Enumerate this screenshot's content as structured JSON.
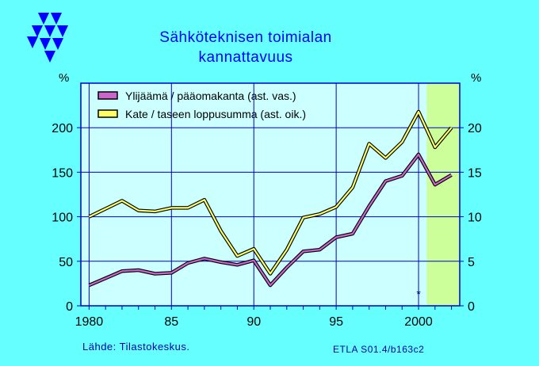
{
  "title_line1": "Sähköteknisen  toimialan",
  "title_line2": "kannattavuus",
  "unit_left": "%",
  "unit_right": "%",
  "source": "Lähde:   Tilastokeskus.",
  "code": "ETLA S01.4/b163c2",
  "star_mark": "*",
  "colors": {
    "background": "#66ffff",
    "plot_background": "#ccffff",
    "forecast_band": "#ccff99",
    "grid": "#0000cc",
    "series1": "#cc66cc",
    "series2": "#ffff66",
    "text": "#000000",
    "title": "#0000ff",
    "logo": "#0000ff"
  },
  "chart_data": {
    "type": "line",
    "x_ticks": [
      1980,
      1985,
      1990,
      1995,
      2000
    ],
    "x_tick_labels": [
      "1980",
      "85",
      "90",
      "95",
      "2000"
    ],
    "xlim": [
      1979.5,
      2002.5
    ],
    "forecast_from": 2000.5,
    "y_left": {
      "ticks": [
        0,
        50,
        100,
        150,
        200
      ],
      "labels": [
        "0",
        "50",
        "100",
        "150",
        "200"
      ],
      "lim": [
        0,
        250
      ]
    },
    "y_right": {
      "ticks": [
        0,
        5,
        10,
        15,
        20
      ],
      "labels": [
        "0",
        "5",
        "10",
        "15",
        "20"
      ],
      "lim": [
        0,
        25
      ]
    },
    "x": [
      1980,
      1981,
      1982,
      1983,
      1984,
      1985,
      1986,
      1987,
      1988,
      1989,
      1990,
      1991,
      1992,
      1993,
      1994,
      1995,
      1996,
      1997,
      1998,
      1999,
      2000,
      2001,
      2002
    ],
    "series": [
      {
        "name": "Ylijäämä / pääomakanta (ast. vas.)",
        "axis": "left",
        "values": [
          23,
          31,
          39,
          40,
          36,
          37,
          48,
          53,
          49,
          46,
          51,
          23,
          43,
          61,
          63,
          77,
          81,
          112,
          140,
          146,
          170,
          136,
          147
        ]
      },
      {
        "name": "Kate / taseen loppusumma (ast. oik.)",
        "axis": "right",
        "values": [
          10.0,
          10.9,
          11.8,
          10.7,
          10.6,
          11.0,
          11.0,
          11.9,
          8.4,
          5.6,
          6.4,
          3.6,
          6.3,
          9.9,
          10.3,
          11.1,
          13.3,
          18.2,
          16.6,
          18.4,
          21.8,
          17.8,
          20.0
        ]
      }
    ]
  }
}
